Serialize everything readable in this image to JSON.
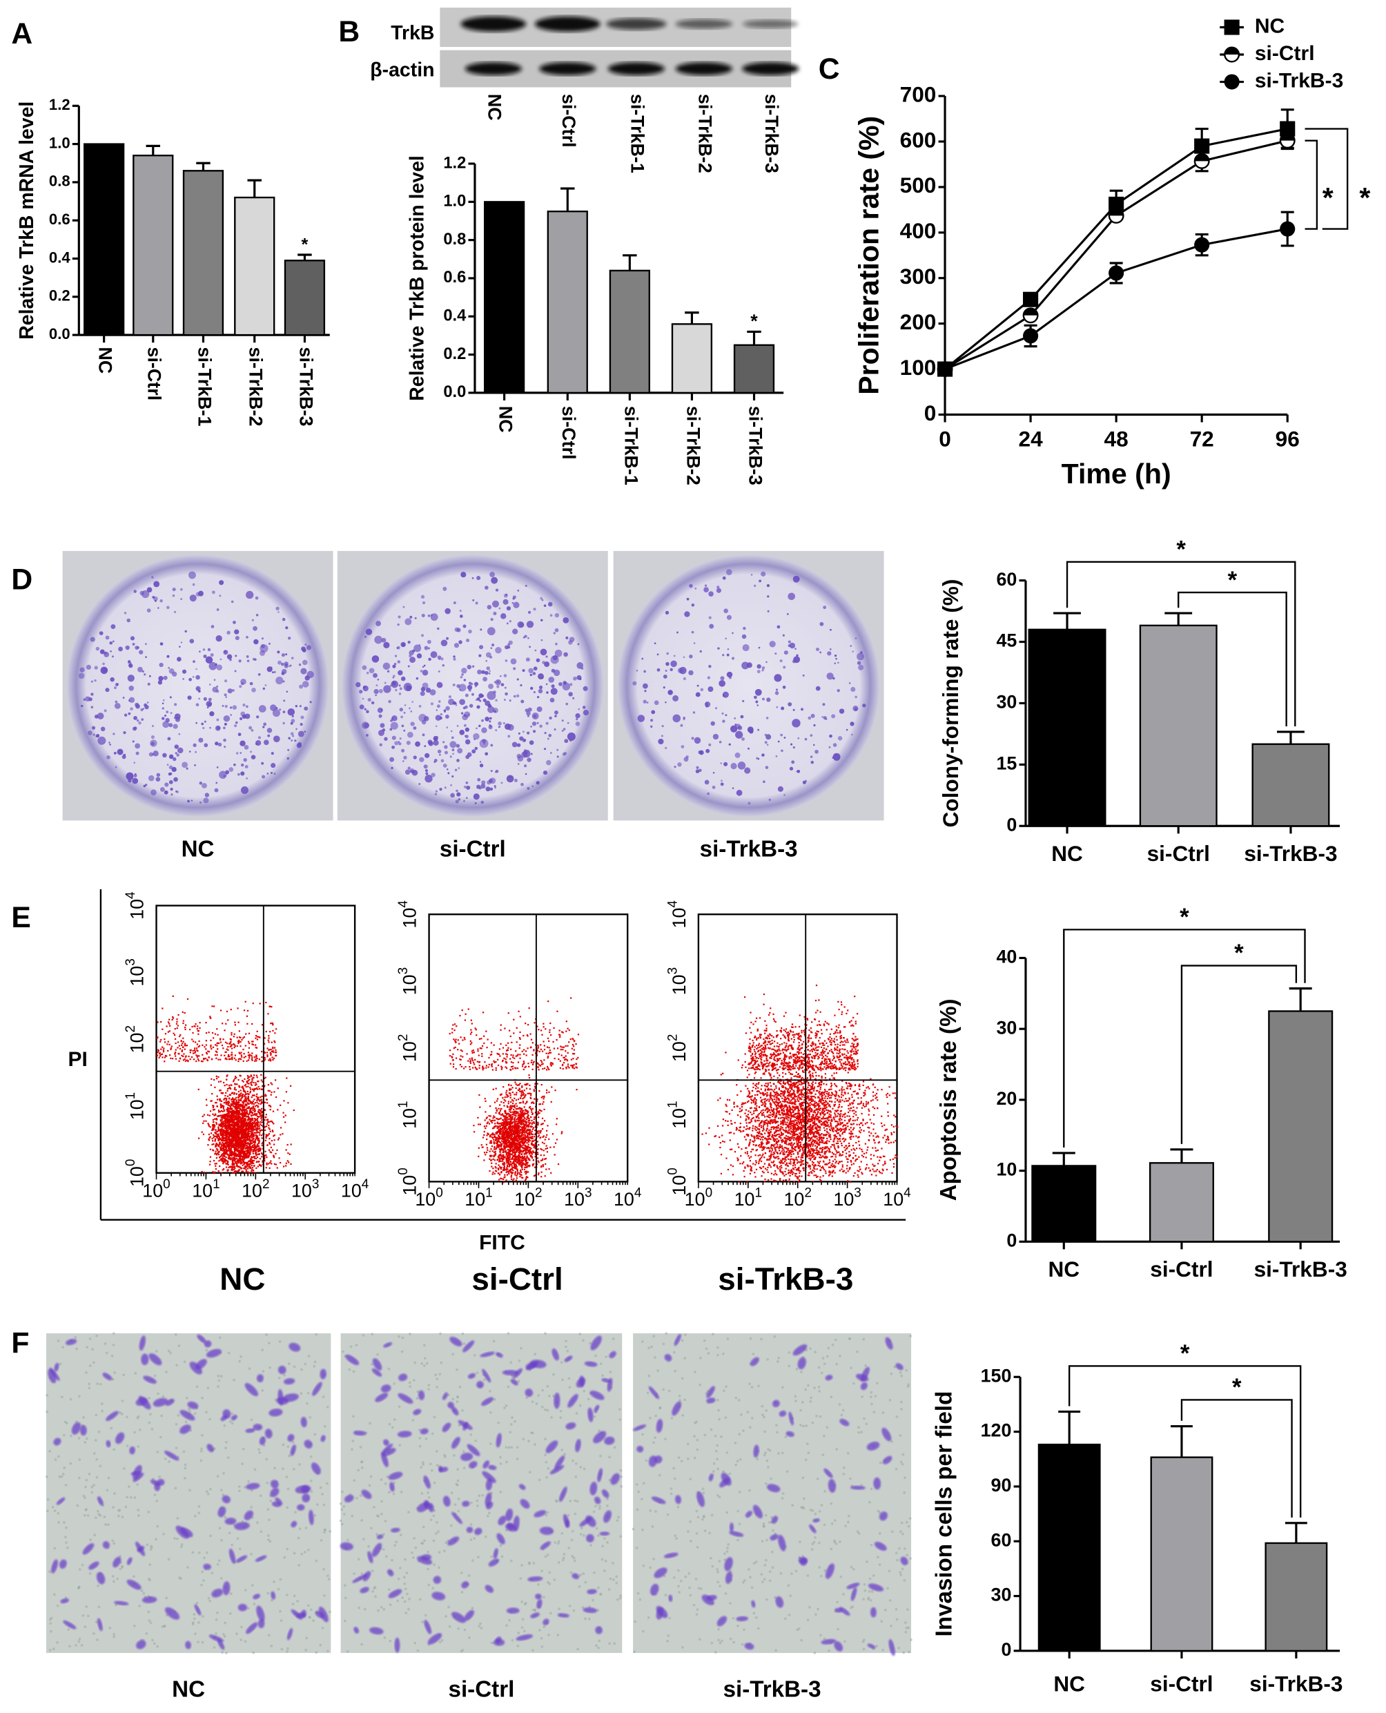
{
  "panel_labels": {
    "A": "A",
    "B": "B",
    "C": "C",
    "D": "D",
    "E": "E",
    "F": "F"
  },
  "blot": {
    "rows": [
      "TrkB",
      "β-actin"
    ],
    "lanes": [
      "NC",
      "si-Ctrl",
      "si-TrkB-1",
      "si-TrkB-2",
      "si-TrkB-3"
    ],
    "trkb_band_intensity": [
      1.0,
      1.0,
      0.6,
      0.35,
      0.22
    ],
    "actin_band_intensity": [
      1.0,
      1.0,
      1.0,
      1.0,
      1.0
    ]
  },
  "colony_images": {
    "labels": [
      "NC",
      "si-Ctrl",
      "si-TrkB-3"
    ]
  },
  "flow": {
    "labels": [
      "NC",
      "si-Ctrl",
      "si-TrkB-3"
    ],
    "xlabel": "FITC",
    "ylabel": "PI",
    "tick_base": "10",
    "tick_exponents": [
      "0",
      "1",
      "2",
      "3",
      "4"
    ]
  },
  "invasion_images": {
    "labels": [
      "NC",
      "si-Ctrl",
      "si-TrkB-3"
    ]
  },
  "chart_data": [
    {
      "panel": "A",
      "type": "bar",
      "title": "",
      "xlabel": "",
      "ylabel": "Relative TrkB mRNA level",
      "categories": [
        "NC",
        "si-Ctrl",
        "si-TrkB-1",
        "si-TrkB-2",
        "si-TrkB-3"
      ],
      "values": [
        1.0,
        0.94,
        0.86,
        0.72,
        0.39
      ],
      "errors": [
        0,
        0.05,
        0.04,
        0.09,
        0.03
      ],
      "colors": [
        "#000000",
        "#a0a0a4",
        "#808080",
        "#d8d8d8",
        "#606060"
      ],
      "ylim": [
        0,
        1.2
      ],
      "yticks": [
        0,
        0.2,
        0.4,
        0.6,
        0.8,
        1.0,
        1.2
      ],
      "ytick_labels": [
        "0.0",
        "0.2",
        "0.4",
        "0.6",
        "0.8",
        "1.0",
        "1.2"
      ],
      "significance": [
        {
          "category": "si-TrkB-3",
          "label": "*"
        }
      ],
      "comparisons": []
    },
    {
      "panel": "B",
      "type": "bar",
      "title": "",
      "xlabel": "",
      "ylabel": "Relative TrkB protein level",
      "categories": [
        "NC",
        "si-Ctrl",
        "si-TrkB-1",
        "si-TrkB-2",
        "si-TrkB-3"
      ],
      "values": [
        1.0,
        0.95,
        0.64,
        0.36,
        0.25
      ],
      "errors": [
        0,
        0.12,
        0.08,
        0.06,
        0.07
      ],
      "colors": [
        "#000000",
        "#a0a0a4",
        "#808080",
        "#d8d8d8",
        "#606060"
      ],
      "ylim": [
        0,
        1.2
      ],
      "yticks": [
        0,
        0.2,
        0.4,
        0.6,
        0.8,
        1.0,
        1.2
      ],
      "ytick_labels": [
        "0.0",
        "0.2",
        "0.4",
        "0.6",
        "0.8",
        "1.0",
        "1.2"
      ],
      "significance": [
        {
          "category": "si-TrkB-3",
          "label": "*"
        }
      ],
      "comparisons": []
    },
    {
      "panel": "C",
      "type": "line",
      "title": "",
      "xlabel": "Time (h)",
      "ylabel": "Proliferation rate (%)",
      "x": [
        0,
        24,
        48,
        72,
        96
      ],
      "xtick_labels": [
        "0",
        "24",
        "48",
        "72",
        "96"
      ],
      "ylim": [
        0,
        700
      ],
      "yticks": [
        0,
        100,
        200,
        300,
        400,
        500,
        600,
        700
      ],
      "ytick_labels": [
        "0",
        "100",
        "200",
        "300",
        "400",
        "500",
        "600",
        "700"
      ],
      "legend_position": "top-right",
      "series": [
        {
          "name": "NC",
          "marker": "square",
          "values": [
            100,
            253,
            462,
            590,
            628
          ],
          "errors": [
            0,
            0,
            30,
            38,
            42
          ]
        },
        {
          "name": "si-Ctrl",
          "marker": "half-open-circle",
          "values": [
            100,
            218,
            437,
            557,
            602
          ],
          "errors": [
            0,
            0,
            0,
            22,
            18
          ]
        },
        {
          "name": "si-TrkB-3",
          "marker": "filled-circle",
          "values": [
            100,
            173,
            311,
            373,
            408
          ],
          "errors": [
            0,
            23,
            22,
            23,
            37
          ]
        }
      ],
      "comparisons": [
        {
          "from": "NC",
          "to": "si-TrkB-3",
          "label": "*"
        },
        {
          "from": "si-Ctrl",
          "to": "si-TrkB-3",
          "label": "*"
        }
      ]
    },
    {
      "panel": "D",
      "type": "bar",
      "title": "",
      "xlabel": "",
      "ylabel": "Colony-forming rate (%)",
      "categories": [
        "NC",
        "si-Ctrl",
        "si-TrkB-3"
      ],
      "values": [
        48,
        49,
        20
      ],
      "errors": [
        4,
        3,
        3
      ],
      "colors": [
        "#000000",
        "#a0a0a4",
        "#808080"
      ],
      "ylim": [
        0,
        60
      ],
      "yticks": [
        0,
        15,
        30,
        45,
        60
      ],
      "ytick_labels": [
        "0",
        "15",
        "30",
        "45",
        "60"
      ],
      "significance": [],
      "comparisons": [
        {
          "from": "NC",
          "to": "si-TrkB-3",
          "label": "*"
        },
        {
          "from": "si-Ctrl",
          "to": "si-TrkB-3",
          "label": "*"
        }
      ]
    },
    {
      "panel": "E",
      "type": "bar",
      "title": "",
      "xlabel": "",
      "ylabel": "Apoptosis rate (%)",
      "categories": [
        "NC",
        "si-Ctrl",
        "si-TrkB-3"
      ],
      "values": [
        10.7,
        11.1,
        32.5
      ],
      "errors": [
        1.8,
        1.9,
        3.2
      ],
      "colors": [
        "#000000",
        "#a0a0a4",
        "#808080"
      ],
      "ylim": [
        0,
        40
      ],
      "yticks": [
        0,
        10,
        20,
        30,
        40
      ],
      "ytick_labels": [
        "0",
        "10",
        "20",
        "30",
        "40"
      ],
      "significance": [],
      "comparisons": [
        {
          "from": "NC",
          "to": "si-TrkB-3",
          "label": "*"
        },
        {
          "from": "si-Ctrl",
          "to": "si-TrkB-3",
          "label": "*"
        }
      ]
    },
    {
      "panel": "F",
      "type": "bar",
      "title": "",
      "xlabel": "",
      "ylabel": "Invasion cells per field",
      "categories": [
        "NC",
        "si-Ctrl",
        "si-TrkB-3"
      ],
      "values": [
        113,
        106,
        59
      ],
      "errors": [
        18,
        17,
        11
      ],
      "colors": [
        "#000000",
        "#a0a0a4",
        "#808080"
      ],
      "ylim": [
        0,
        150
      ],
      "yticks": [
        0,
        30,
        60,
        90,
        120,
        150
      ],
      "ytick_labels": [
        "0",
        "30",
        "60",
        "90",
        "120",
        "150"
      ],
      "significance": [],
      "comparisons": [
        {
          "from": "NC",
          "to": "si-TrkB-3",
          "label": "*"
        },
        {
          "from": "si-Ctrl",
          "to": "si-TrkB-3",
          "label": "*"
        }
      ]
    }
  ]
}
